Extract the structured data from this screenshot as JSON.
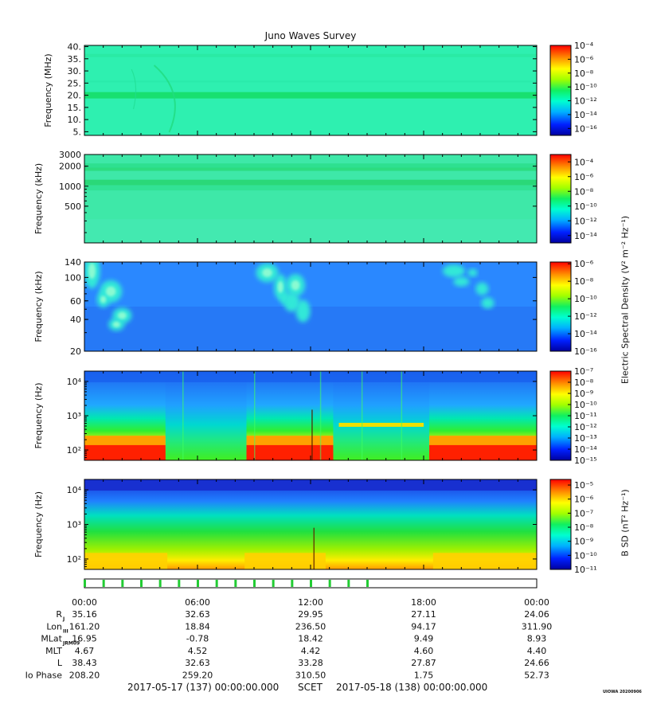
{
  "title": "Juno Waves Survey",
  "footer": {
    "start_label": "2017-05-17 (137) 00:00:00.000",
    "scet": "SCET",
    "end_label": "2017-05-18 (138) 00:00:00.000",
    "credit": "UIOWA 20200906"
  },
  "colors": {
    "frame": "#000000",
    "marker_green": "#22cc33"
  },
  "shared_colorbar_labels": {
    "electric": "Electric Spectral Density (V² m⁻² Hz⁻¹)",
    "magnetic": "B SD (nT² Hz⁻¹)"
  },
  "chart_data": [
    {
      "type": "heatmap",
      "panel": "hfwbr-high",
      "ylabel": "Frequency (MHz)",
      "yscale": "linear",
      "ylim": [
        3.5,
        40.5
      ],
      "yticks": [
        5,
        10,
        15,
        20,
        25,
        30,
        35,
        40
      ],
      "ytick_labels": [
        "5.",
        "10.",
        "15.",
        "20.",
        "25.",
        "30.",
        "35.",
        "40."
      ],
      "colorbar": {
        "exp_min": -17,
        "exp_max": -4,
        "ticks": [
          -4,
          -6,
          -8,
          -10,
          -12,
          -14,
          -16
        ]
      }
    },
    {
      "type": "heatmap",
      "panel": "hfr-low",
      "ylabel": "Frequency (kHz)",
      "yscale": "log",
      "ylim": [
        140,
        3000
      ],
      "yticks": [
        500,
        1000,
        2000,
        3000
      ],
      "ytick_labels": [
        "500",
        "1000",
        "2000",
        "3000"
      ],
      "colorbar": {
        "exp_min": -15,
        "exp_max": -3,
        "ticks": [
          -4,
          -6,
          -8,
          -10,
          -12,
          -14
        ]
      }
    },
    {
      "type": "heatmap",
      "panel": "lfr-high",
      "ylabel": "Frequency (kHz)",
      "yscale": "log",
      "ylim": [
        20,
        140
      ],
      "yticks": [
        20,
        40,
        60,
        100,
        140
      ],
      "ytick_labels": [
        "20",
        "40",
        "60",
        "100",
        "140"
      ],
      "colorbar": {
        "exp_min": -16,
        "exp_max": -5.8,
        "ticks": [
          -6,
          -8,
          -10,
          -12,
          -14,
          -16
        ]
      }
    },
    {
      "type": "heatmap",
      "panel": "lfr-low",
      "ylabel": "Frequency (Hz)",
      "yscale": "log",
      "ylim": [
        50,
        20000
      ],
      "yticks": [
        100,
        1000,
        10000
      ],
      "ytick_labels": [
        "10²",
        "10³",
        "10⁴"
      ],
      "colorbar": {
        "exp_min": -15,
        "exp_max": -7,
        "ticks": [
          -7,
          -8,
          -9,
          -10,
          -11,
          -12,
          -13,
          -14,
          -15
        ]
      }
    },
    {
      "type": "heatmap",
      "panel": "magnetic",
      "ylabel": "Frequency (Hz)",
      "yscale": "log",
      "ylim": [
        50,
        20000
      ],
      "yticks": [
        100,
        1000,
        10000
      ],
      "ytick_labels": [
        "10²",
        "10³",
        "10⁴"
      ],
      "colorbar": {
        "exp_min": -11,
        "exp_max": -4.6,
        "ticks": [
          -5,
          -6,
          -7,
          -8,
          -9,
          -10,
          -11
        ]
      }
    }
  ],
  "x_axis": {
    "range_hours": [
      0,
      24
    ],
    "ticks": [
      0,
      6,
      12,
      18,
      24
    ],
    "tick_labels": [
      "00:00",
      "06:00",
      "12:00",
      "18:00",
      "00:00"
    ],
    "minor_step_hours": 1
  },
  "mode_markers_hours": [
    0,
    1,
    2,
    3,
    4,
    5,
    6,
    7,
    8,
    9,
    10,
    11,
    12,
    13,
    14,
    15
  ],
  "ephemeris": [
    {
      "label": "R",
      "sub": "J",
      "values": [
        "35.16",
        "32.63",
        "29.95",
        "27.11",
        "24.06"
      ]
    },
    {
      "label": "Lon",
      "sub": "III",
      "values": [
        "161.20",
        "18.84",
        "236.50",
        "94.17",
        "311.90"
      ]
    },
    {
      "label": "MLat",
      "sub": "JRM09",
      "values": [
        "16.95",
        "-0.78",
        "18.42",
        "9.49",
        "8.93"
      ]
    },
    {
      "label": "MLT",
      "sub": "",
      "values": [
        "4.67",
        "4.52",
        "4.42",
        "4.60",
        "4.40"
      ]
    },
    {
      "label": "L",
      "sub": "",
      "values": [
        "38.43",
        "32.63",
        "33.28",
        "27.87",
        "24.66"
      ]
    },
    {
      "label": "Io Phase",
      "sub": "",
      "values": [
        "208.20",
        "259.20",
        "310.50",
        "1.75",
        "52.73"
      ]
    }
  ]
}
